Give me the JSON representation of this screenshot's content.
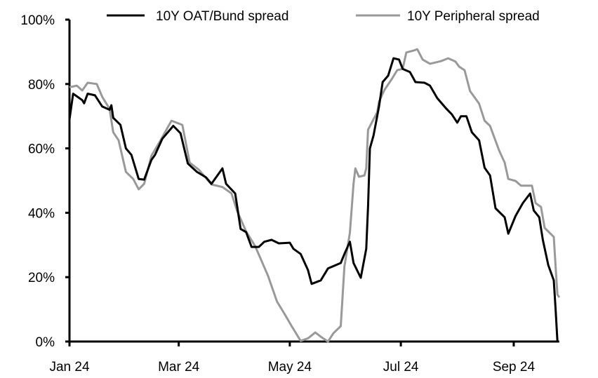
{
  "chart_data": {
    "type": "line",
    "title": "",
    "xlabel": "",
    "ylabel": "",
    "ylim": [
      0,
      100
    ],
    "y_unit": "%",
    "y_ticks": [
      "0%",
      "20%",
      "40%",
      "60%",
      "80%",
      "100%"
    ],
    "x_ticks": [
      {
        "date": "2024-01-01",
        "label": "Jan 24"
      },
      {
        "date": "2024-03-01",
        "label": "Mar 24"
      },
      {
        "date": "2024-05-01",
        "label": "May 24"
      },
      {
        "date": "2024-07-01",
        "label": "Jul 24"
      },
      {
        "date": "2024-09-01",
        "label": "Sep 24"
      }
    ],
    "xlim": [
      "2024-01-01",
      "2024-09-26"
    ],
    "grid": false,
    "legend_position": "top",
    "series": [
      {
        "name": "10Y OAT/Bund spread",
        "color": "#000000",
        "points": [
          [
            "2024-01-01",
            69
          ],
          [
            "2024-01-03",
            77
          ],
          [
            "2024-01-08",
            75
          ],
          [
            "2024-01-09",
            74
          ],
          [
            "2024-01-11",
            77
          ],
          [
            "2024-01-15",
            76.5
          ],
          [
            "2024-01-19",
            73
          ],
          [
            "2024-01-23",
            72
          ],
          [
            "2024-01-24",
            73.4
          ],
          [
            "2024-01-25",
            69.5
          ],
          [
            "2024-01-29",
            67.3
          ],
          [
            "2024-02-01",
            60
          ],
          [
            "2024-02-04",
            58
          ],
          [
            "2024-02-08",
            50.5
          ],
          [
            "2024-02-11",
            50.3
          ],
          [
            "2024-02-15",
            56.4
          ],
          [
            "2024-02-17",
            58
          ],
          [
            "2024-02-21",
            63
          ],
          [
            "2024-02-27",
            67
          ],
          [
            "2024-03-02",
            64.7
          ],
          [
            "2024-03-06",
            55.3
          ],
          [
            "2024-03-11",
            52.7
          ],
          [
            "2024-03-16",
            51
          ],
          [
            "2024-03-19",
            49
          ],
          [
            "2024-03-25",
            53.8
          ],
          [
            "2024-03-27",
            49
          ],
          [
            "2024-04-01",
            46
          ],
          [
            "2024-04-04",
            35
          ],
          [
            "2024-04-07",
            34
          ],
          [
            "2024-04-10",
            29.4
          ],
          [
            "2024-04-14",
            29.4
          ],
          [
            "2024-04-17",
            31
          ],
          [
            "2024-04-21",
            31.6
          ],
          [
            "2024-04-25",
            30.5
          ],
          [
            "2024-05-01",
            30.7
          ],
          [
            "2024-05-03",
            28.8
          ],
          [
            "2024-05-07",
            27.2
          ],
          [
            "2024-05-11",
            22.2
          ],
          [
            "2024-05-13",
            17.9
          ],
          [
            "2024-05-18",
            19
          ],
          [
            "2024-05-22",
            22.7
          ],
          [
            "2024-05-29",
            24.4
          ],
          [
            "2024-05-31",
            27.2
          ],
          [
            "2024-06-03",
            31
          ],
          [
            "2024-06-05",
            24.4
          ],
          [
            "2024-06-09",
            19.8
          ],
          [
            "2024-06-12",
            28.8
          ],
          [
            "2024-06-13",
            42
          ],
          [
            "2024-06-14",
            60
          ],
          [
            "2024-06-16",
            64
          ],
          [
            "2024-06-19",
            73
          ],
          [
            "2024-06-21",
            80.6
          ],
          [
            "2024-06-24",
            82.6
          ],
          [
            "2024-06-27",
            88
          ],
          [
            "2024-06-30",
            87.6
          ],
          [
            "2024-07-02",
            84.7
          ],
          [
            "2024-07-06",
            83.7
          ],
          [
            "2024-07-09",
            80.6
          ],
          [
            "2024-07-14",
            80.4
          ],
          [
            "2024-07-17",
            79.5
          ],
          [
            "2024-07-21",
            75.6
          ],
          [
            "2024-07-26",
            72.3
          ],
          [
            "2024-07-29",
            70.6
          ],
          [
            "2024-08-01",
            68
          ],
          [
            "2024-08-03",
            70
          ],
          [
            "2024-08-06",
            70
          ],
          [
            "2024-08-09",
            65
          ],
          [
            "2024-08-13",
            62.5
          ],
          [
            "2024-08-16",
            54
          ],
          [
            "2024-08-19",
            51.6
          ],
          [
            "2024-08-22",
            41.4
          ],
          [
            "2024-08-27",
            38.6
          ],
          [
            "2024-08-29",
            33.5
          ],
          [
            "2024-09-02",
            39
          ],
          [
            "2024-09-06",
            43
          ],
          [
            "2024-09-10",
            46
          ],
          [
            "2024-09-12",
            40.7
          ],
          [
            "2024-09-15",
            38.6
          ],
          [
            "2024-09-17",
            31.6
          ],
          [
            "2024-09-20",
            23.7
          ],
          [
            "2024-09-23",
            19
          ],
          [
            "2024-09-24",
            10
          ],
          [
            "2024-09-25",
            0
          ]
        ]
      },
      {
        "name": "10Y Peripheral spread",
        "color": "#999999",
        "points": [
          [
            "2024-01-01",
            79
          ],
          [
            "2024-01-05",
            79.5
          ],
          [
            "2024-01-08",
            78
          ],
          [
            "2024-01-11",
            80.4
          ],
          [
            "2024-01-16",
            80
          ],
          [
            "2024-01-19",
            76
          ],
          [
            "2024-01-23",
            72.3
          ],
          [
            "2024-01-25",
            65
          ],
          [
            "2024-01-28",
            62.5
          ],
          [
            "2024-02-01",
            52.7
          ],
          [
            "2024-02-05",
            50.5
          ],
          [
            "2024-02-08",
            47.3
          ],
          [
            "2024-02-11",
            49
          ],
          [
            "2024-02-15",
            57.7
          ],
          [
            "2024-02-20",
            62.5
          ],
          [
            "2024-02-26",
            68.6
          ],
          [
            "2024-03-03",
            67.3
          ],
          [
            "2024-03-07",
            55.6
          ],
          [
            "2024-03-12",
            53.4
          ],
          [
            "2024-03-19",
            48.8
          ],
          [
            "2024-03-25",
            48
          ],
          [
            "2024-03-30",
            46
          ],
          [
            "2024-04-02",
            40.7
          ],
          [
            "2024-04-07",
            34.2
          ],
          [
            "2024-04-12",
            29.6
          ],
          [
            "2024-04-19",
            20.5
          ],
          [
            "2024-04-24",
            12.4
          ],
          [
            "2024-04-28",
            8.7
          ],
          [
            "2024-05-02",
            4.8
          ],
          [
            "2024-05-07",
            0.2
          ],
          [
            "2024-05-11",
            1
          ],
          [
            "2024-05-15",
            2.8
          ],
          [
            "2024-05-18",
            1.5
          ],
          [
            "2024-05-22",
            0
          ],
          [
            "2024-05-25",
            2.6
          ],
          [
            "2024-05-29",
            4.8
          ],
          [
            "2024-05-31",
            23.3
          ],
          [
            "2024-06-03",
            33.8
          ],
          [
            "2024-06-05",
            49
          ],
          [
            "2024-06-06",
            53.8
          ],
          [
            "2024-06-08",
            51.2
          ],
          [
            "2024-06-11",
            51.6
          ],
          [
            "2024-06-12",
            53.8
          ],
          [
            "2024-06-13",
            65.8
          ],
          [
            "2024-06-18",
            71.2
          ],
          [
            "2024-06-19",
            74.5
          ],
          [
            "2024-06-22",
            78.2
          ],
          [
            "2024-06-26",
            81.5
          ],
          [
            "2024-06-29",
            84.3
          ],
          [
            "2024-07-02",
            84.7
          ],
          [
            "2024-07-04",
            89.8
          ],
          [
            "2024-07-08",
            90.4
          ],
          [
            "2024-07-10",
            90.8
          ],
          [
            "2024-07-13",
            87.6
          ],
          [
            "2024-07-17",
            86.3
          ],
          [
            "2024-07-23",
            87.1
          ],
          [
            "2024-07-27",
            88
          ],
          [
            "2024-07-31",
            87
          ],
          [
            "2024-08-02",
            85.4
          ],
          [
            "2024-08-05",
            84.3
          ],
          [
            "2024-08-08",
            77.8
          ],
          [
            "2024-08-13",
            73.9
          ],
          [
            "2024-08-16",
            68.6
          ],
          [
            "2024-08-19",
            67
          ],
          [
            "2024-08-24",
            59.3
          ],
          [
            "2024-08-27",
            55.6
          ],
          [
            "2024-08-29",
            50.5
          ],
          [
            "2024-09-02",
            49.9
          ],
          [
            "2024-09-05",
            48.4
          ],
          [
            "2024-09-11",
            48.4
          ],
          [
            "2024-09-13",
            43
          ],
          [
            "2024-09-16",
            41.8
          ],
          [
            "2024-09-18",
            35.3
          ],
          [
            "2024-09-23",
            32.5
          ],
          [
            "2024-09-24",
            23.3
          ],
          [
            "2024-09-25",
            14.6
          ],
          [
            "2024-09-26",
            13.7
          ]
        ]
      }
    ]
  }
}
